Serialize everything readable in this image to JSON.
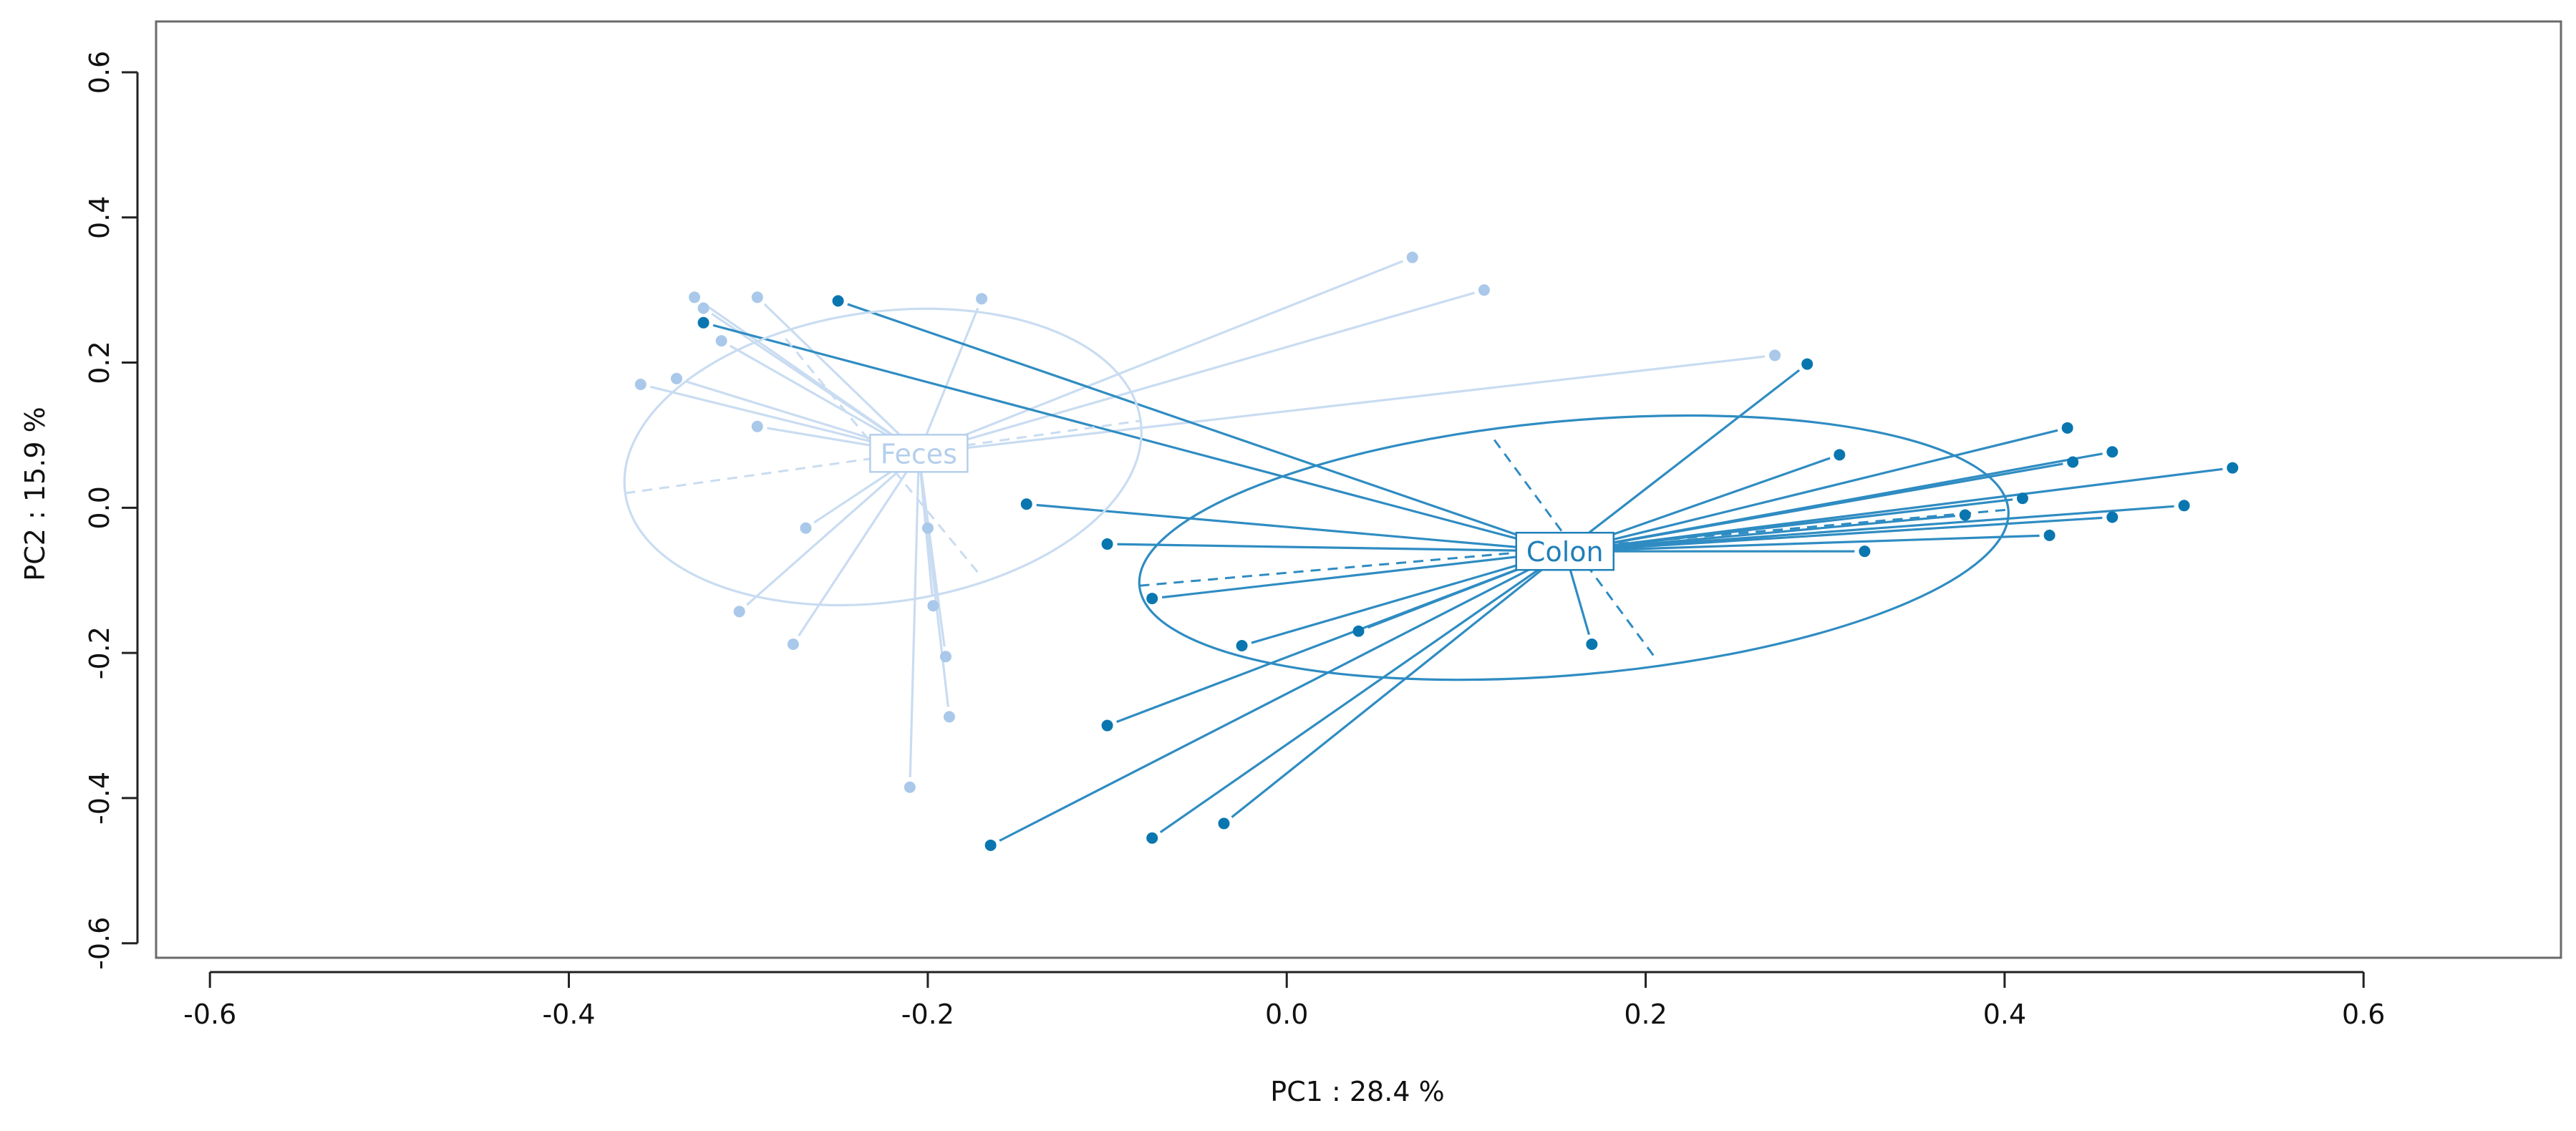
{
  "chart_data": {
    "type": "scatter",
    "subtype": "PCoA ordination with group spiders and ellipses",
    "xlabel": "PC1 :  28.4 %",
    "ylabel": "PC2 :  15.9 %",
    "xlim": [
      -0.63,
      0.71
    ],
    "ylim": [
      -0.62,
      0.67
    ],
    "x_ticks": [
      -0.6,
      -0.4,
      -0.2,
      0.0,
      0.2,
      0.4,
      0.6
    ],
    "x_tick_labels": [
      "-0.6",
      "-0.4",
      "-0.2",
      "0.0",
      "0.2",
      "0.4",
      "0.6"
    ],
    "y_ticks": [
      -0.6,
      -0.4,
      -0.2,
      0.0,
      0.2,
      0.4,
      0.6
    ],
    "y_tick_labels": [
      "-0.6",
      "-0.4",
      "-0.2",
      "0.0",
      "0.2",
      "0.4",
      "0.6"
    ],
    "grid": false,
    "groups": [
      {
        "name": "Feces",
        "color": "#a9c8ea",
        "line_color": "#c9dcf1",
        "label_color": "#b5cfec",
        "centroid": [
          -0.205,
          0.075
        ],
        "ellipse": {
          "center": [
            -0.225,
            0.07
          ],
          "semi_major": 0.145,
          "semi_minor": 0.2,
          "angle_deg": 8
        },
        "points": [
          [
            -0.33,
            0.29
          ],
          [
            -0.325,
            0.275
          ],
          [
            -0.295,
            0.29
          ],
          [
            -0.17,
            0.288
          ],
          [
            -0.315,
            0.23
          ],
          [
            -0.36,
            0.17
          ],
          [
            -0.34,
            0.178
          ],
          [
            -0.295,
            0.112
          ],
          [
            -0.268,
            -0.028
          ],
          [
            -0.305,
            -0.143
          ],
          [
            -0.275,
            -0.188
          ],
          [
            -0.2,
            -0.028
          ],
          [
            -0.197,
            -0.135
          ],
          [
            -0.19,
            -0.205
          ],
          [
            -0.188,
            -0.288
          ],
          [
            -0.21,
            -0.385
          ],
          [
            0.07,
            0.345
          ],
          [
            0.11,
            0.3
          ],
          [
            0.272,
            0.21
          ]
        ]
      },
      {
        "name": "Colon",
        "color": "#0a76b0",
        "line_color": "#2f8cc2",
        "label_color": "#1f7fb8",
        "centroid": [
          0.155,
          -0.06
        ],
        "ellipse": {
          "center": [
            0.16,
            -0.055
          ],
          "semi_major": 0.243,
          "semi_minor": 0.175,
          "angle_deg": 5
        },
        "points": [
          [
            -0.25,
            0.285
          ],
          [
            -0.325,
            0.255
          ],
          [
            -0.145,
            0.005
          ],
          [
            -0.1,
            -0.05
          ],
          [
            -0.075,
            -0.125
          ],
          [
            -0.025,
            -0.19
          ],
          [
            0.04,
            -0.17
          ],
          [
            -0.1,
            -0.3
          ],
          [
            -0.165,
            -0.465
          ],
          [
            -0.075,
            -0.455
          ],
          [
            -0.035,
            -0.435
          ],
          [
            0.17,
            -0.188
          ],
          [
            0.29,
            0.198
          ],
          [
            0.308,
            0.073
          ],
          [
            0.322,
            -0.06
          ],
          [
            0.378,
            -0.01
          ],
          [
            0.41,
            0.013
          ],
          [
            0.425,
            -0.038
          ],
          [
            0.435,
            0.11
          ],
          [
            0.438,
            0.063
          ],
          [
            0.46,
            0.077
          ],
          [
            0.46,
            -0.013
          ],
          [
            0.5,
            0.003
          ],
          [
            0.527,
            0.055
          ]
        ]
      }
    ]
  }
}
